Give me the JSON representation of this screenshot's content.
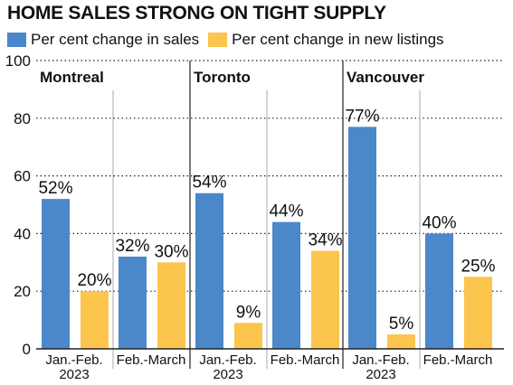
{
  "chart_data": {
    "type": "bar",
    "title": "HOME SALES STRONG ON TIGHT SUPPLY",
    "ylim": [
      0,
      100
    ],
    "yticks": [
      0,
      20,
      40,
      60,
      80,
      100
    ],
    "grid": "horizontal dotted",
    "legend_placement": "top-left",
    "series": [
      {
        "name": "Per cent change in sales",
        "color": "#4a88c9"
      },
      {
        "name": "Per cent change in new listings",
        "color": "#fcc54d"
      }
    ],
    "groups": [
      {
        "name": "Montreal",
        "periods": [
          {
            "label": [
              "Jan.-Feb.",
              "2023"
            ],
            "values": [
              52,
              20
            ],
            "value_labels": [
              "52%",
              "20%"
            ]
          },
          {
            "label": [
              "Feb.-March"
            ],
            "values": [
              32,
              30
            ],
            "value_labels": [
              "32%",
              "30%"
            ]
          }
        ]
      },
      {
        "name": "Toronto",
        "periods": [
          {
            "label": [
              "Jan.-Feb.",
              "2023"
            ],
            "values": [
              54,
              9
            ],
            "value_labels": [
              "54%",
              "9%"
            ]
          },
          {
            "label": [
              "Feb.-March"
            ],
            "values": [
              44,
              34
            ],
            "value_labels": [
              "44%",
              "34%"
            ]
          }
        ]
      },
      {
        "name": "Vancouver",
        "periods": [
          {
            "label": [
              "Jan.-Feb.",
              "2023"
            ],
            "values": [
              77,
              5
            ],
            "value_labels": [
              "77%",
              "5%"
            ]
          },
          {
            "label": [
              "Feb.-March"
            ],
            "values": [
              40,
              25
            ],
            "value_labels": [
              "40%",
              "25%"
            ]
          }
        ]
      }
    ]
  }
}
